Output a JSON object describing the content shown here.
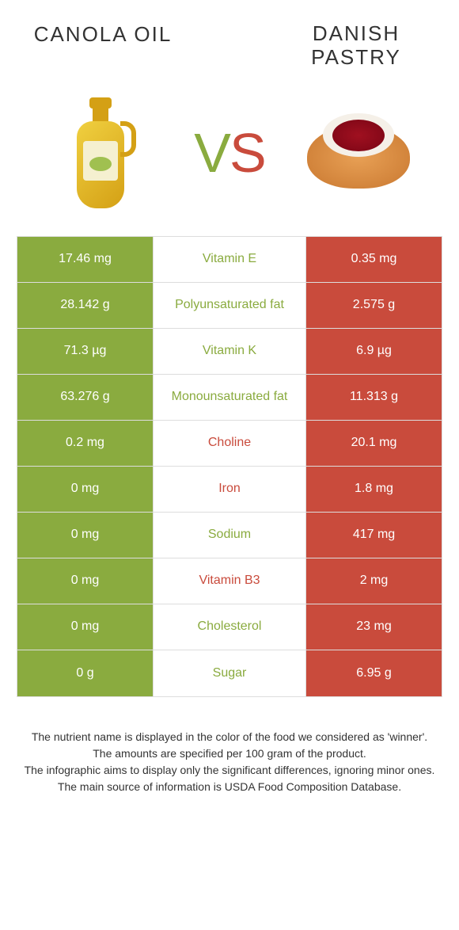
{
  "header": {
    "left_title": "CANOLA OIL",
    "right_title": "DANISH PASTRY"
  },
  "vs": {
    "v": "V",
    "s": "S"
  },
  "colors": {
    "green": "#8aab3f",
    "red": "#c94b3c",
    "text": "#333333",
    "background": "#ffffff",
    "border": "#dddddd"
  },
  "table": {
    "rows": [
      {
        "left": "17.46 mg",
        "mid": "Vitamin E",
        "right": "0.35 mg",
        "winner": "green"
      },
      {
        "left": "28.142 g",
        "mid": "Polyunsaturated fat",
        "right": "2.575 g",
        "winner": "green"
      },
      {
        "left": "71.3 µg",
        "mid": "Vitamin K",
        "right": "6.9 µg",
        "winner": "green"
      },
      {
        "left": "63.276 g",
        "mid": "Monounsaturated fat",
        "right": "11.313 g",
        "winner": "green"
      },
      {
        "left": "0.2 mg",
        "mid": "Choline",
        "right": "20.1 mg",
        "winner": "red"
      },
      {
        "left": "0 mg",
        "mid": "Iron",
        "right": "1.8 mg",
        "winner": "red"
      },
      {
        "left": "0 mg",
        "mid": "Sodium",
        "right": "417 mg",
        "winner": "green"
      },
      {
        "left": "0 mg",
        "mid": "Vitamin B3",
        "right": "2 mg",
        "winner": "red"
      },
      {
        "left": "0 mg",
        "mid": "Cholesterol",
        "right": "23 mg",
        "winner": "green"
      },
      {
        "left": "0 g",
        "mid": "Sugar",
        "right": "6.95 g",
        "winner": "green"
      }
    ]
  },
  "footer": {
    "line1": "The nutrient name is displayed in the color of the food we considered as 'winner'.",
    "line2": "The amounts are specified per 100 gram of the product.",
    "line3": "The infographic aims to display only the significant differences, ignoring minor ones.",
    "line4": "The main source of information is USDA Food Composition Database."
  }
}
